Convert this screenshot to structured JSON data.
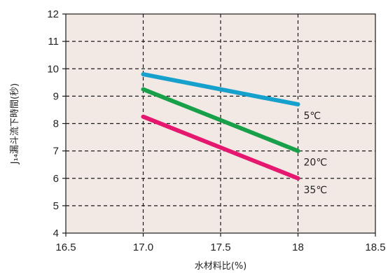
{
  "chart_data": {
    "type": "line",
    "xlabel": "水材料比(%)",
    "ylabel": "J₁₄漏斗流下時間(秒)",
    "xlim": [
      16.5,
      18.5
    ],
    "ylim": [
      4,
      12
    ],
    "x_ticks": [
      16.5,
      17.0,
      17.5,
      18,
      18.5
    ],
    "x_tick_labels": [
      "16.5",
      "17.0",
      "17.5",
      "18",
      "18.5"
    ],
    "y_ticks": [
      4,
      5,
      6,
      7,
      8,
      9,
      10,
      11,
      12
    ],
    "y_tick_labels": [
      "4",
      "5",
      "6",
      "7",
      "8",
      "9",
      "10",
      "11",
      "12"
    ],
    "grid": true,
    "plot_background": "#f2e8e4",
    "series": [
      {
        "name": "5℃",
        "color": "#16a0cc",
        "x": [
          17.0,
          18
        ],
        "y": [
          9.8,
          8.7
        ]
      },
      {
        "name": "20℃",
        "color": "#17a049",
        "x": [
          17.0,
          18
        ],
        "y": [
          9.25,
          7.0
        ]
      },
      {
        "name": "35℃",
        "color": "#e5176e",
        "x": [
          17.0,
          18
        ],
        "y": [
          8.25,
          6.0
        ]
      }
    ]
  }
}
